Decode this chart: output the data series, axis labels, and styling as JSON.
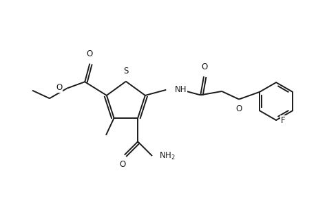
{
  "background": "#ffffff",
  "line_color": "#1a1a1a",
  "line_width": 1.4,
  "dbo": 0.035,
  "figsize": [
    4.6,
    3.0
  ],
  "dpi": 100,
  "xlim": [
    0,
    4.6
  ],
  "ylim": [
    0,
    3.0
  ]
}
